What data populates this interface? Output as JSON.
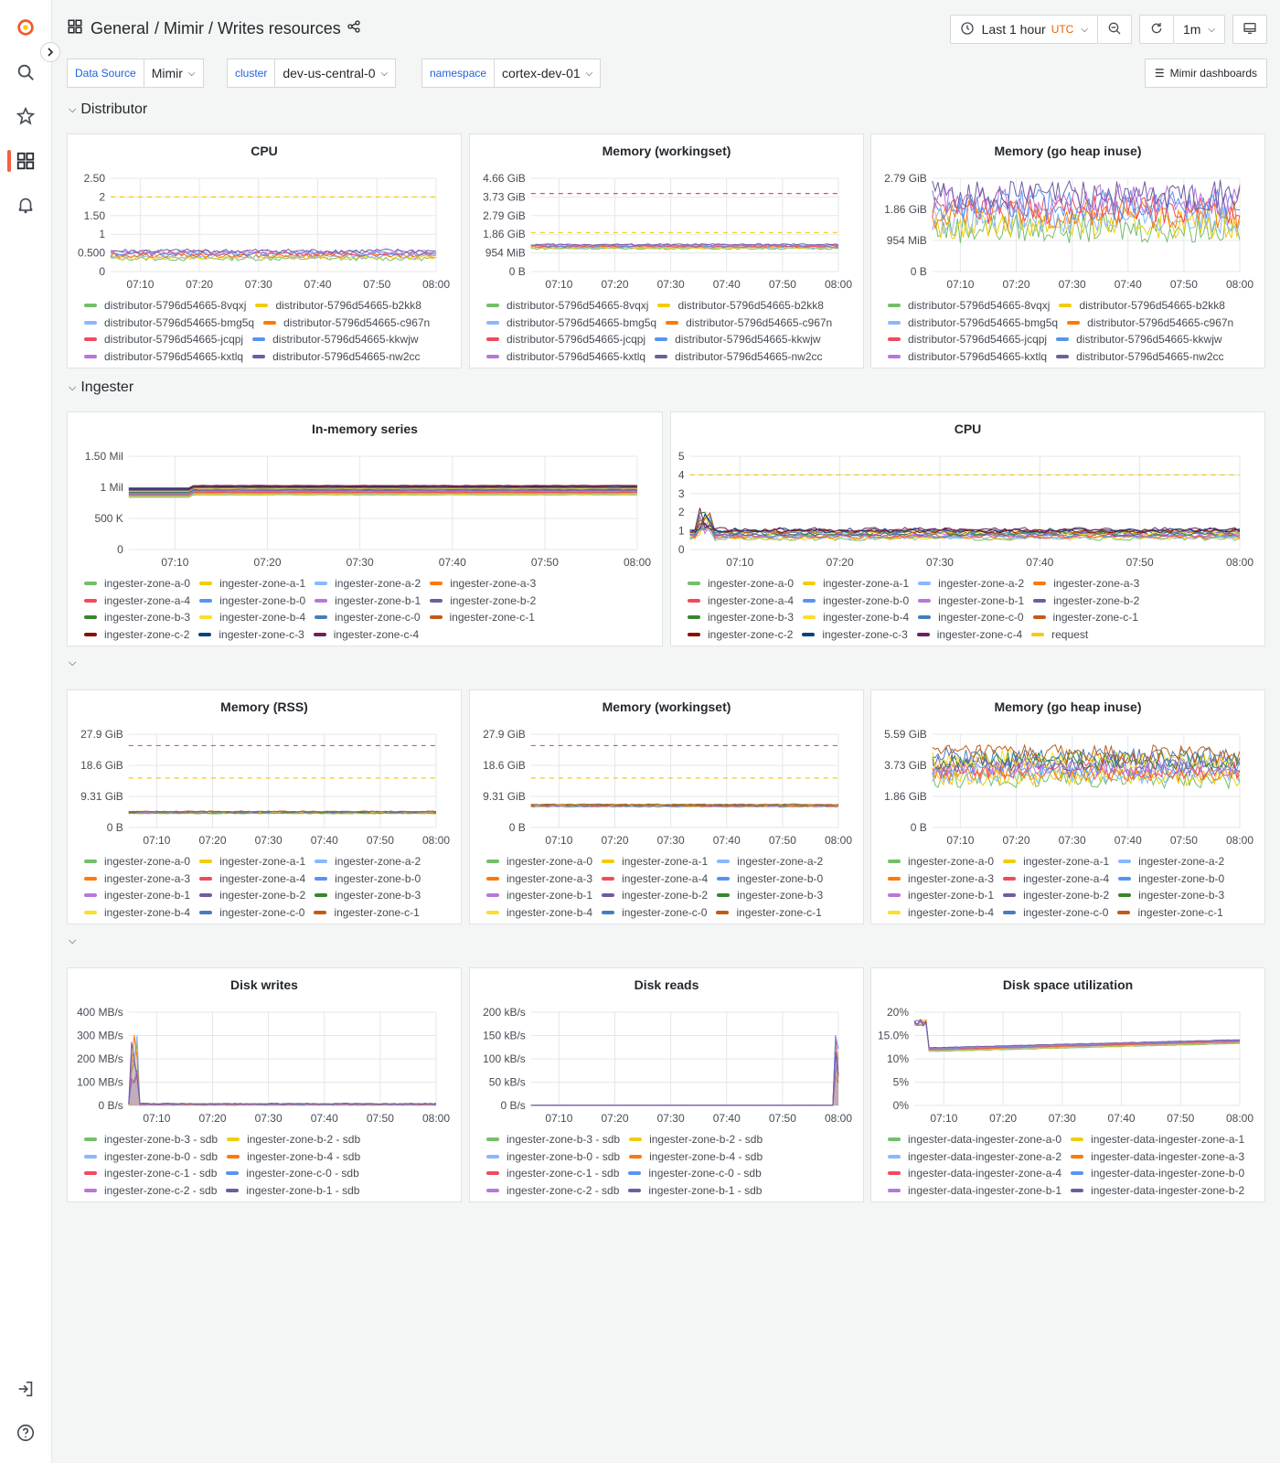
{
  "sidebar": {
    "icons": [
      "grafana-logo-icon",
      "search-icon",
      "star-icon",
      "dashboards-icon",
      "alert-bell-icon",
      "sign-in-icon",
      "help-icon"
    ]
  },
  "breadcrumb": [
    "General",
    "/ Mimir / Writes resources"
  ],
  "toolbar": {
    "time_range": "Last 1 hour",
    "tz": "UTC",
    "refresh_interval": "1m"
  },
  "variables": [
    {
      "label": "Data Source",
      "value": "Mimir"
    },
    {
      "label": "cluster",
      "value": "dev-us-central-0"
    },
    {
      "label": "namespace",
      "value": "cortex-dev-01"
    }
  ],
  "mimir_dashboards_label": "Mimir dashboards",
  "rows": [
    {
      "title": "Distributor",
      "collapsed": false
    },
    {
      "title": "Ingester",
      "collapsed": false
    },
    {
      "title": "",
      "collapsed": false
    },
    {
      "title": "",
      "collapsed": false
    }
  ],
  "colors": {
    "c0": "#73bf69",
    "c1": "#f2cc0c",
    "c2": "#8ab8ff",
    "c3": "#ff780a",
    "c4": "#f2495c",
    "c5": "#5794f2",
    "c6": "#b877d9",
    "c7": "#705da0",
    "c8": "#37872d",
    "c9": "#fade2a",
    "c10": "#447ebc",
    "c11": "#c15c17",
    "c12": "#890f02",
    "c13": "#0a437c",
    "c14": "#6d1f62",
    "limit": "#f2495c",
    "request": "#f2cc0c"
  },
  "x_ticks": [
    "07:10",
    "07:20",
    "07:30",
    "07:40",
    "07:50",
    "08:00"
  ],
  "chart_data": [
    {
      "id": "dist_cpu",
      "type": "line",
      "title": "CPU",
      "yticks": [
        "0",
        "0.500",
        "1",
        "1.50",
        "2",
        "2.50"
      ],
      "ylim": [
        0,
        2.5
      ],
      "thresholds": [
        {
          "value": 2,
          "color": "#f2cc0c"
        }
      ],
      "band": [
        0.35,
        0.55
      ],
      "noise": 0.06,
      "series": [
        "distributor-5796d54665-8vqxj",
        "distributor-5796d54665-b2kk8",
        "distributor-5796d54665-bmg5q",
        "distributor-5796d54665-c967n",
        "distributor-5796d54665-jcqpj",
        "distributor-5796d54665-kkwjw",
        "distributor-5796d54665-kxtlq",
        "distributor-5796d54665-nw2cc"
      ]
    },
    {
      "id": "dist_mem_ws",
      "type": "line",
      "title": "Memory (workingset)",
      "yticks": [
        "0 B",
        "954 MiB",
        "1.86 GiB",
        "2.79 GiB",
        "3.73 GiB",
        "4.66 GiB"
      ],
      "ylim": [
        0,
        4.66
      ],
      "thresholds": [
        {
          "value": 3.9,
          "color": "#f2495c"
        },
        {
          "value": 1.95,
          "color": "#f2cc0c"
        }
      ],
      "band": [
        1.15,
        1.35
      ],
      "noise": 0.04,
      "series": [
        "distributor-5796d54665-8vqxj",
        "distributor-5796d54665-b2kk8",
        "distributor-5796d54665-bmg5q",
        "distributor-5796d54665-c967n",
        "distributor-5796d54665-jcqpj",
        "distributor-5796d54665-kkwjw",
        "distributor-5796d54665-kxtlq",
        "distributor-5796d54665-nw2cc"
      ]
    },
    {
      "id": "dist_mem_heap",
      "type": "line",
      "title": "Memory (go heap inuse)",
      "yticks": [
        "0 B",
        "954 MiB",
        "1.86 GiB",
        "2.79 GiB"
      ],
      "ylim": [
        0,
        2.79
      ],
      "thresholds": [],
      "band": [
        1.3,
        2.3
      ],
      "noise": 0.45,
      "series": [
        "distributor-5796d54665-8vqxj",
        "distributor-5796d54665-b2kk8",
        "distributor-5796d54665-bmg5q",
        "distributor-5796d54665-c967n",
        "distributor-5796d54665-jcqpj",
        "distributor-5796d54665-kkwjw",
        "distributor-5796d54665-kxtlq",
        "distributor-5796d54665-nw2cc"
      ]
    },
    {
      "id": "ing_series",
      "type": "line",
      "title": "In-memory series",
      "yticks": [
        "0",
        "500 K",
        "1 Mil",
        "1.50 Mil"
      ],
      "ylim": [
        0,
        1.5
      ],
      "thresholds": [],
      "band": [
        0.88,
        1.03
      ],
      "noise": 0.003,
      "series": [
        "ingester-zone-a-0",
        "ingester-zone-a-1",
        "ingester-zone-a-2",
        "ingester-zone-a-3",
        "ingester-zone-a-4",
        "ingester-zone-b-0",
        "ingester-zone-b-1",
        "ingester-zone-b-2",
        "ingester-zone-b-3",
        "ingester-zone-b-4",
        "ingester-zone-c-0",
        "ingester-zone-c-1",
        "ingester-zone-c-2",
        "ingester-zone-c-3",
        "ingester-zone-c-4"
      ]
    },
    {
      "id": "ing_cpu",
      "type": "line",
      "title": "CPU",
      "yticks": [
        "0",
        "1",
        "2",
        "3",
        "4",
        "5"
      ],
      "ylim": [
        0,
        5
      ],
      "thresholds": [
        {
          "value": 4,
          "color": "#f2cc0c"
        }
      ],
      "band": [
        0.6,
        1.1
      ],
      "noise": 0.12,
      "series": [
        "ingester-zone-a-0",
        "ingester-zone-a-1",
        "ingester-zone-a-2",
        "ingester-zone-a-3",
        "ingester-zone-a-4",
        "ingester-zone-b-0",
        "ingester-zone-b-1",
        "ingester-zone-b-2",
        "ingester-zone-b-3",
        "ingester-zone-b-4",
        "ingester-zone-c-0",
        "ingester-zone-c-1",
        "ingester-zone-c-2",
        "ingester-zone-c-3",
        "ingester-zone-c-4",
        "request"
      ]
    },
    {
      "id": "ing_rss",
      "type": "line",
      "title": "Memory (RSS)",
      "yticks": [
        "0 B",
        "9.31 GiB",
        "18.6 GiB",
        "27.9 GiB"
      ],
      "ylim": [
        0,
        27.9
      ],
      "thresholds": [
        {
          "value": 24.5,
          "color": "#f2495c"
        },
        {
          "value": 14.8,
          "color": "#f2cc0c"
        }
      ],
      "band": [
        4.2,
        4.8
      ],
      "noise": 0.15,
      "series": [
        "ingester-zone-a-0",
        "ingester-zone-a-1",
        "ingester-zone-a-2",
        "ingester-zone-a-3",
        "ingester-zone-a-4",
        "ingester-zone-b-0",
        "ingester-zone-b-1",
        "ingester-zone-b-2",
        "ingester-zone-b-3",
        "ingester-zone-b-4",
        "ingester-zone-c-0",
        "ingester-zone-c-1"
      ]
    },
    {
      "id": "ing_ws",
      "type": "line",
      "title": "Memory (workingset)",
      "yticks": [
        "0 B",
        "9.31 GiB",
        "18.6 GiB",
        "27.9 GiB"
      ],
      "ylim": [
        0,
        27.9
      ],
      "thresholds": [
        {
          "value": 24.5,
          "color": "#f2495c"
        },
        {
          "value": 14.8,
          "color": "#f2cc0c"
        }
      ],
      "band": [
        6.2,
        6.9
      ],
      "noise": 0.15,
      "series": [
        "ingester-zone-a-0",
        "ingester-zone-a-1",
        "ingester-zone-a-2",
        "ingester-zone-a-3",
        "ingester-zone-a-4",
        "ingester-zone-b-0",
        "ingester-zone-b-1",
        "ingester-zone-b-2",
        "ingester-zone-b-3",
        "ingester-zone-b-4",
        "ingester-zone-c-0",
        "ingester-zone-c-1"
      ]
    },
    {
      "id": "ing_heap",
      "type": "line",
      "title": "Memory (go heap inuse)",
      "yticks": [
        "0 B",
        "1.86 GiB",
        "3.73 GiB",
        "5.59 GiB"
      ],
      "ylim": [
        0,
        5.59
      ],
      "thresholds": [],
      "band": [
        2.9,
        4.4
      ],
      "noise": 0.55,
      "series": [
        "ingester-zone-a-0",
        "ingester-zone-a-1",
        "ingester-zone-a-2",
        "ingester-zone-a-3",
        "ingester-zone-a-4",
        "ingester-zone-b-0",
        "ingester-zone-b-1",
        "ingester-zone-b-2",
        "ingester-zone-b-3",
        "ingester-zone-b-4",
        "ingester-zone-c-0",
        "ingester-zone-c-1"
      ]
    },
    {
      "id": "disk_writes",
      "type": "area",
      "title": "Disk writes",
      "yticks": [
        "0 B/s",
        "100 MB/s",
        "200 MB/s",
        "300 MB/s",
        "400 MB/s"
      ],
      "ylim": [
        0,
        400
      ],
      "thresholds": [],
      "band": [
        2,
        8
      ],
      "noise": 2,
      "spike": {
        "at": 0.02,
        "value": 310
      },
      "series": [
        "ingester-zone-b-3 - sdb",
        "ingester-zone-b-2 - sdb",
        "ingester-zone-b-0 - sdb",
        "ingester-zone-b-4 - sdb",
        "ingester-zone-c-1 - sdb",
        "ingester-zone-c-0 - sdb",
        "ingester-zone-c-2 - sdb",
        "ingester-zone-b-1 - sdb"
      ]
    },
    {
      "id": "disk_reads",
      "type": "area",
      "title": "Disk reads",
      "yticks": [
        "0 B/s",
        "50 kB/s",
        "100 kB/s",
        "150 kB/s",
        "200 kB/s"
      ],
      "ylim": [
        0,
        200
      ],
      "thresholds": [],
      "band": [
        0,
        0.5
      ],
      "noise": 0.2,
      "spike": {
        "at": 0.995,
        "value": 160
      },
      "series": [
        "ingester-zone-b-3 - sdb",
        "ingester-zone-b-2 - sdb",
        "ingester-zone-b-0 - sdb",
        "ingester-zone-b-4 - sdb",
        "ingester-zone-c-1 - sdb",
        "ingester-zone-c-0 - sdb",
        "ingester-zone-c-2 - sdb",
        "ingester-zone-b-1 - sdb"
      ]
    },
    {
      "id": "disk_space",
      "type": "line",
      "title": "Disk space utilization",
      "yticks": [
        "0%",
        "5%",
        "10%",
        "15.0%",
        "20%"
      ],
      "ylim": [
        0,
        20
      ],
      "thresholds": [],
      "band": [
        11.5,
        12.3
      ],
      "noise": 0.05,
      "trend": 1.8,
      "series": [
        "ingester-data-ingester-zone-a-0",
        "ingester-data-ingester-zone-a-1",
        "ingester-data-ingester-zone-a-2",
        "ingester-data-ingester-zone-a-3",
        "ingester-data-ingester-zone-a-4",
        "ingester-data-ingester-zone-b-0",
        "ingester-data-ingester-zone-b-1",
        "ingester-data-ingester-zone-b-2"
      ]
    }
  ]
}
